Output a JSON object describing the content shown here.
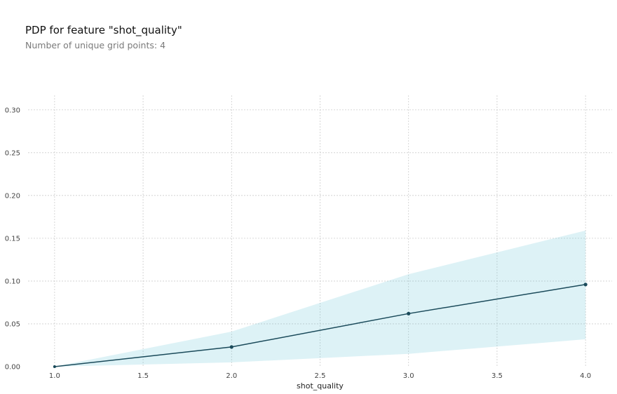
{
  "chart_data": {
    "type": "line",
    "title": "PDP for feature \"shot_quality\"",
    "subtitle": "Number of unique grid points: 4",
    "xlabel": "shot_quality",
    "ylabel": "",
    "x": [
      1.0,
      2.0,
      3.0,
      4.0
    ],
    "series": [
      {
        "values": [
          0.0,
          0.023,
          0.062,
          0.096
        ],
        "upper": [
          0.0,
          0.041,
          0.108,
          0.159
        ],
        "lower": [
          0.0,
          0.005,
          0.015,
          0.032
        ]
      }
    ],
    "xlim": [
      0.85,
      4.15
    ],
    "ylim": [
      0.0,
      0.317
    ],
    "x_ticks": [
      1.0,
      1.5,
      2.0,
      2.5,
      3.0,
      3.5,
      4.0
    ],
    "x_tick_labels": [
      "1.0",
      "1.5",
      "2.0",
      "2.5",
      "3.0",
      "3.5",
      "4.0"
    ],
    "y_ticks": [
      0.0,
      0.05,
      0.1,
      0.15,
      0.2,
      0.25,
      0.3
    ],
    "y_tick_labels": [
      "0.00",
      "0.05",
      "0.10",
      "0.15",
      "0.20",
      "0.25",
      "0.30"
    ],
    "grid": true,
    "colors": {
      "line": "#1a4a5a",
      "band": "#66c2d7",
      "grid": "#cccccc"
    }
  }
}
